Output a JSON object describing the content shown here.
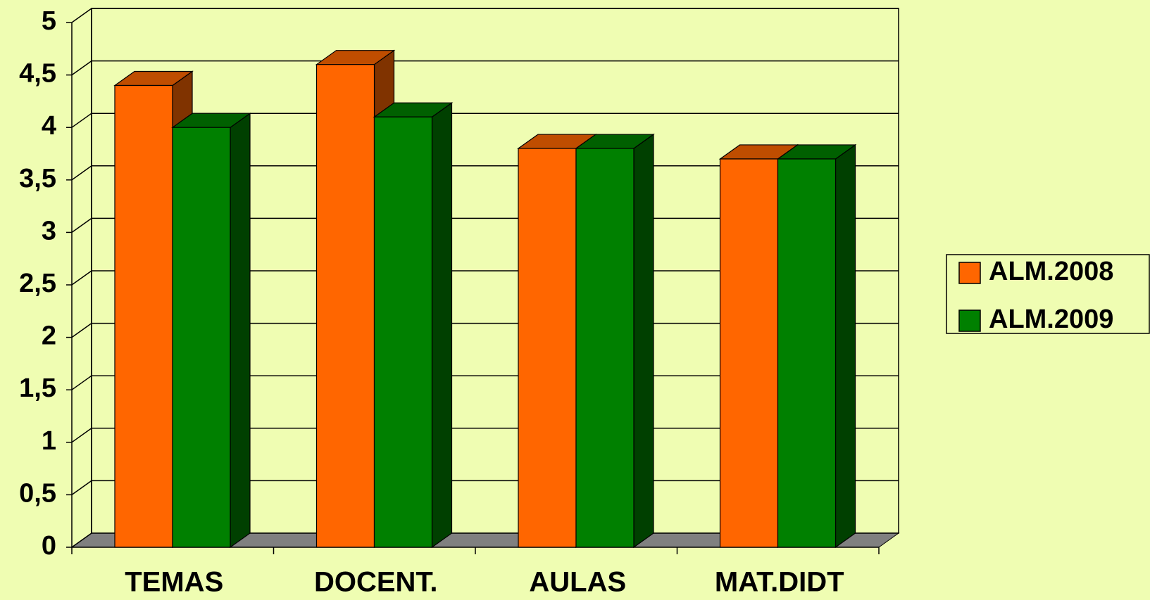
{
  "chart_data": {
    "type": "bar3d",
    "categories": [
      "TEMAS",
      "DOCENT.",
      "AULAS",
      "MAT.DIDT"
    ],
    "series": [
      {
        "name": "ALM.2008",
        "color": "#ff6600",
        "values": [
          4.4,
          4.6,
          3.8,
          3.7
        ]
      },
      {
        "name": "ALM.2009",
        "color": "#008000",
        "values": [
          4.0,
          4.1,
          3.8,
          3.7
        ]
      }
    ],
    "ylim": [
      0,
      5
    ],
    "yticks": [
      0,
      {
        "value": 0.5,
        "label": "0,5"
      },
      1,
      {
        "value": 1.5,
        "label": "1,5"
      },
      2,
      {
        "value": 2.5,
        "label": "2,5"
      },
      3,
      {
        "value": 3.5,
        "label": "3,5"
      },
      4,
      {
        "value": 4.5,
        "label": "4,5"
      },
      5
    ],
    "grid": true,
    "legend": "right"
  }
}
